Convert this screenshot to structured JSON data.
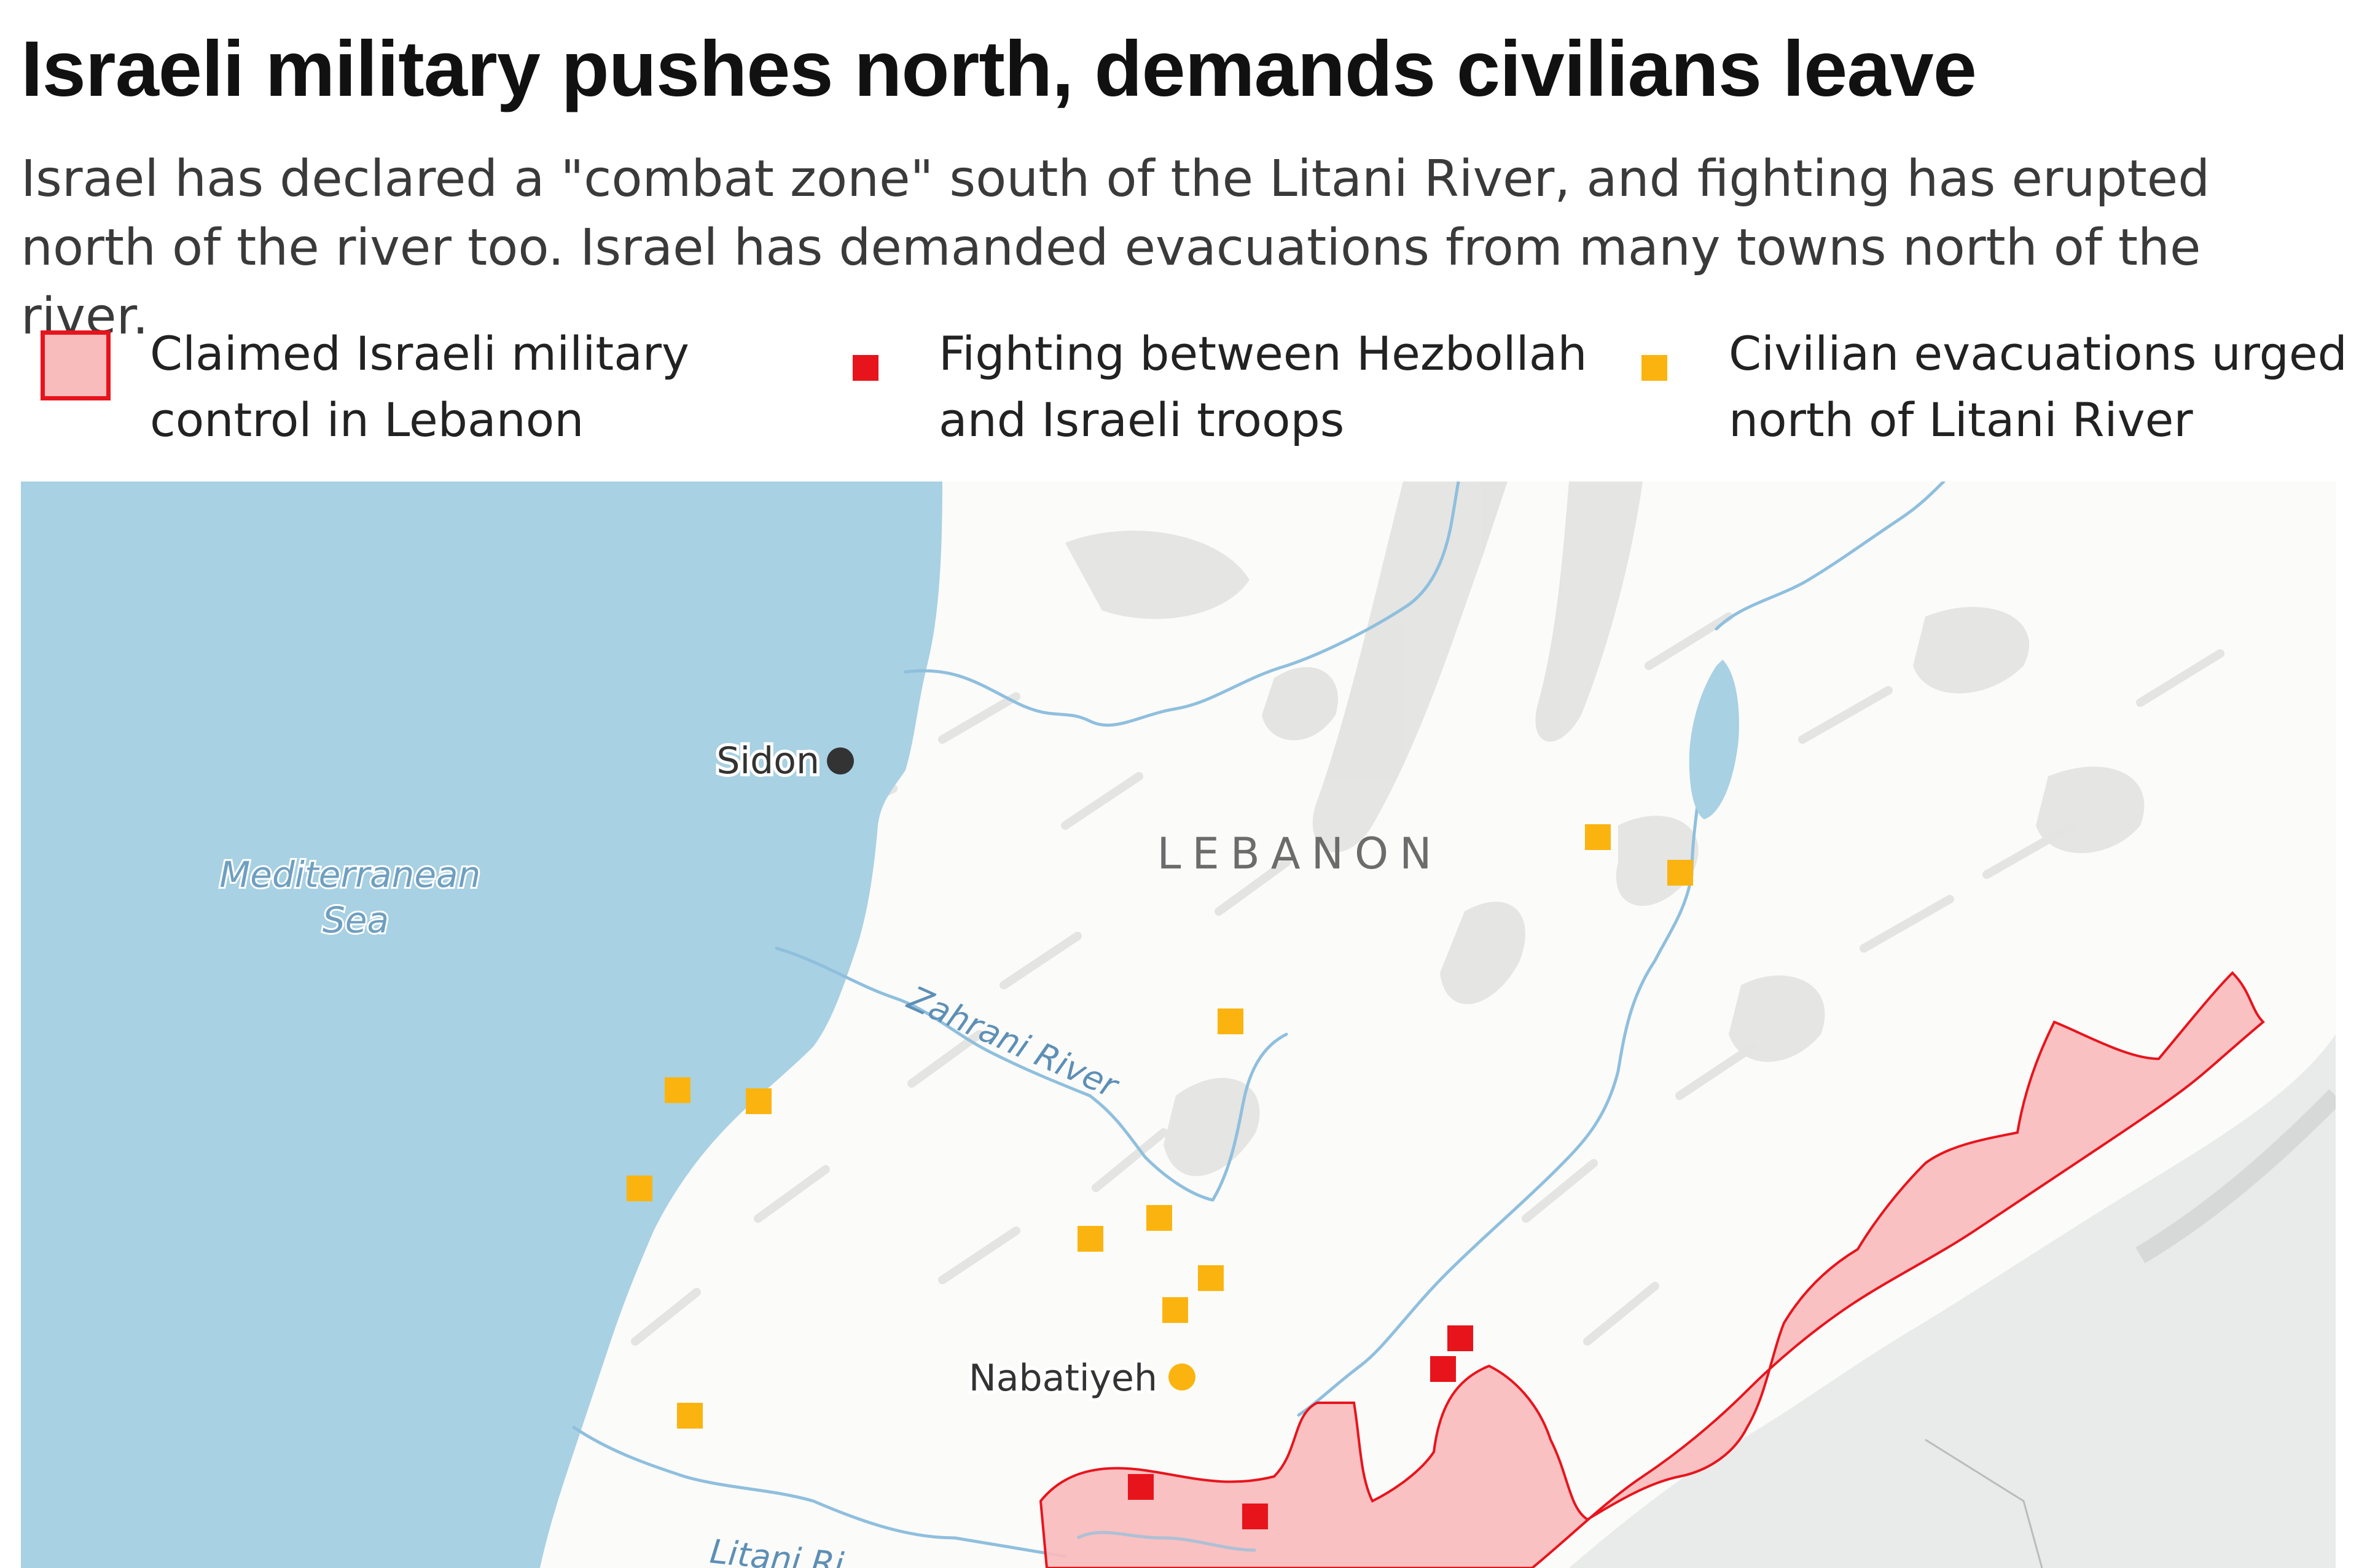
{
  "header": {
    "title": "Israeli military pushes north, demands civilians leave",
    "subtitle": "Israel has declared a \"combat zone\" south of the Litani River, and fighting has erupted north of the river too. Israel has demanded evacuations from many towns north of the river."
  },
  "legend": {
    "items": [
      {
        "label": "Claimed Israeli military\ncontrol in Lebanon",
        "swatch": "area",
        "fill": "#f8bcbd",
        "stroke": "#e8141c"
      },
      {
        "label": "Fighting between Hezbollah\nand Israeli troops",
        "swatch": "square",
        "fill": "#e8141c"
      },
      {
        "label": "Civilian evacuations urged\nnorth of Litani River",
        "swatch": "square",
        "fill": "#fbb40f"
      }
    ]
  },
  "map": {
    "country_label": "LEBANON",
    "sea_label": "Mediterranean\nSea",
    "zahrani_label": "Zahrani River",
    "litani_label": "Litani Ri",
    "cities": [
      {
        "name": "Sidon",
        "marker": "#333333"
      },
      {
        "name": "Nabatiyeh",
        "marker": "#fbb40f"
      }
    ],
    "colors": {
      "sea": "#a8d1e3",
      "land": "#fbfbfa",
      "river": "#8fbfdd",
      "control_fill": "#f8bcbd",
      "control_stroke": "#e8141c",
      "fighting": "#e8141c",
      "evacuation": "#fbb40f"
    }
  }
}
